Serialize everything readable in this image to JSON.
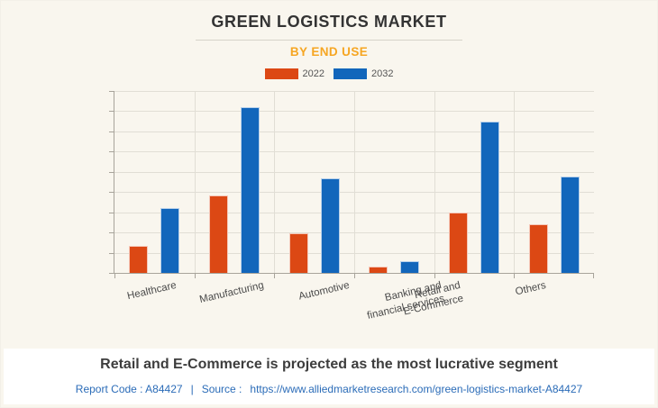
{
  "header": {
    "title": "GREEN LOGISTICS MARKET",
    "subtitle": "BY END USE"
  },
  "legend": [
    {
      "label": "2022",
      "color": "#dc4814"
    },
    {
      "label": "2032",
      "color": "#1266bb"
    }
  ],
  "chart_data": {
    "type": "bar",
    "title": "GREEN LOGISTICS MARKET",
    "subtitle": "BY END USE",
    "categories": [
      "Healthcare",
      "Manufacturing",
      "Automotive",
      "Banking and\nfinancial services",
      "Retail and\nE-Commerce",
      "Others"
    ],
    "series": [
      {
        "name": "2022",
        "color": "#dc4814",
        "values": [
          1.35,
          3.85,
          1.95,
          0.3,
          3.0,
          2.4
        ]
      },
      {
        "name": "2032",
        "color": "#1266bb",
        "values": [
          3.2,
          8.2,
          4.7,
          0.6,
          7.5,
          4.75
        ]
      }
    ],
    "xlabel": "",
    "ylabel": "",
    "ylim": [
      0,
      9
    ],
    "grid": true,
    "legend_position": "top",
    "note": "y-axis has tick marks but no numeric labels; values estimated in gridline units (1 unit = 1 gridline interval, 9 intervals total)"
  },
  "footer": {
    "headline": "Retail and E-Commerce is projected as the most lucrative segment",
    "report_code_label": "Report Code : A84427",
    "separator": "|",
    "source_label": "Source :",
    "source_url": "https://www.alliedmarketresearch.com/green-logistics-market-A84427"
  }
}
